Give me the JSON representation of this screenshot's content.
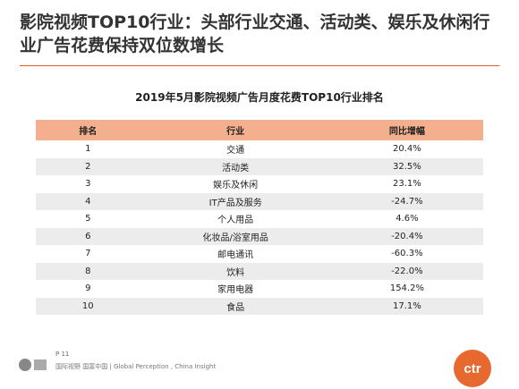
{
  "header": {
    "title": "影院视频TOP10行业：头部行业交通、活动类、娱乐及休闲行业广告花费保持双位数增长"
  },
  "table": {
    "caption": "2019年5月影院视频广告月度花费TOP10行业排名",
    "columns": [
      "排名",
      "行业",
      "同比增幅"
    ],
    "rows": [
      [
        "1",
        "交通",
        "20.4%"
      ],
      [
        "2",
        "活动类",
        "32.5%"
      ],
      [
        "3",
        "娱乐及休闲",
        "23.1%"
      ],
      [
        "4",
        "IT产品及服务",
        "-24.7%"
      ],
      [
        "5",
        "个人用品",
        "4.6%"
      ],
      [
        "6",
        "化妆品/浴室用品",
        "-20.4%"
      ],
      [
        "7",
        "邮电通讯",
        "-60.3%"
      ],
      [
        "8",
        "饮料",
        "-22.0%"
      ],
      [
        "9",
        "家用电器",
        "154.2%"
      ],
      [
        "10",
        "食品",
        "17.1%"
      ]
    ]
  },
  "footer": {
    "page": "P 11",
    "slogan": "国际视野  国富中国 | Global Perception , China Insight",
    "logo": "ctr"
  }
}
